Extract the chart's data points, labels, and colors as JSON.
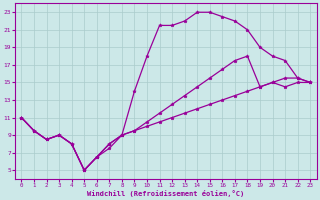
{
  "xlabel": "Windchill (Refroidissement éolien,°C)",
  "bg_color": "#cce8e8",
  "grid_color": "#aacccc",
  "line_color": "#990099",
  "xlim": [
    -0.5,
    23.5
  ],
  "ylim": [
    4,
    24
  ],
  "xticks": [
    0,
    1,
    2,
    3,
    4,
    5,
    6,
    7,
    8,
    9,
    10,
    11,
    12,
    13,
    14,
    15,
    16,
    17,
    18,
    19,
    20,
    21,
    22,
    23
  ],
  "yticks": [
    5,
    7,
    9,
    11,
    13,
    15,
    17,
    19,
    21,
    23
  ],
  "line1_x": [
    0,
    1,
    2,
    3,
    4,
    5,
    6,
    7,
    8,
    9,
    10,
    11,
    12,
    13,
    14,
    15,
    16,
    17,
    18,
    19,
    20,
    21,
    22,
    23
  ],
  "line1_y": [
    11.0,
    9.5,
    8.5,
    9.0,
    8.0,
    5.0,
    6.5,
    7.5,
    9.0,
    14.0,
    18.0,
    21.5,
    21.5,
    22.0,
    23.0,
    23.0,
    22.5,
    22.0,
    21.0,
    19.0,
    18.0,
    17.5,
    15.5,
    15.0
  ],
  "line2_x": [
    0,
    1,
    2,
    3,
    4,
    5,
    6,
    7,
    8,
    9,
    10,
    11,
    12,
    13,
    14,
    15,
    16,
    17,
    18,
    19,
    20,
    21,
    22,
    23
  ],
  "line2_y": [
    11.0,
    9.5,
    8.5,
    9.0,
    8.0,
    5.0,
    6.5,
    8.0,
    9.0,
    9.5,
    10.5,
    11.5,
    12.5,
    13.5,
    14.5,
    15.5,
    16.5,
    17.5,
    18.0,
    14.5,
    15.0,
    14.5,
    15.0,
    15.0
  ],
  "line3_x": [
    0,
    1,
    2,
    3,
    4,
    5,
    6,
    7,
    8,
    9,
    10,
    11,
    12,
    13,
    14,
    15,
    16,
    17,
    18,
    19,
    20,
    21,
    22,
    23
  ],
  "line3_y": [
    11.0,
    9.5,
    8.5,
    9.0,
    8.0,
    5.0,
    6.5,
    8.0,
    9.0,
    9.5,
    10.0,
    10.5,
    11.0,
    11.5,
    12.0,
    12.5,
    13.0,
    13.5,
    14.0,
    14.5,
    15.0,
    15.5,
    15.5,
    15.0
  ]
}
